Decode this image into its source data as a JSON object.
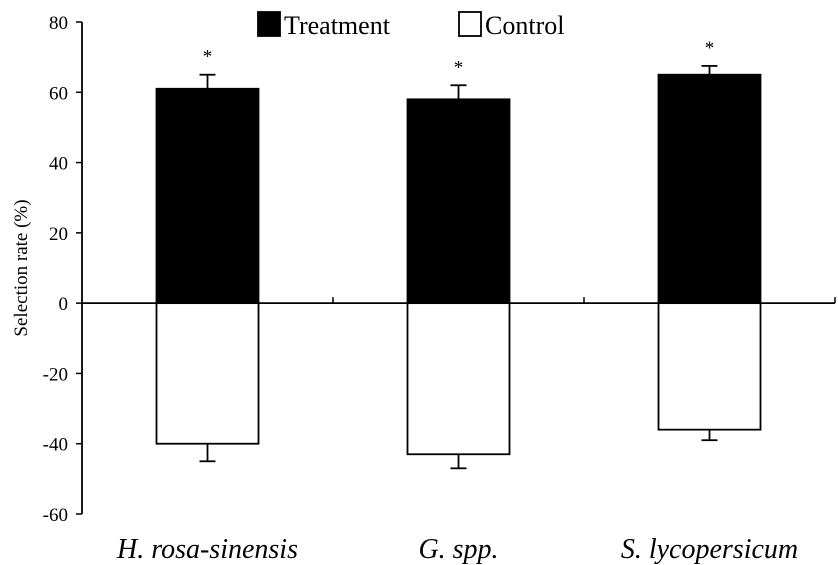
{
  "chart_data": {
    "type": "bar",
    "categories": [
      "H. rosa-sinensis",
      "G. spp.",
      "S. lycopersicum"
    ],
    "series": [
      {
        "name": "Treatment",
        "values": [
          61,
          58,
          65
        ],
        "errors": [
          4,
          4,
          2.5
        ],
        "color": "#000000",
        "annotations": [
          "*",
          "*",
          "*"
        ]
      },
      {
        "name": "Control",
        "values": [
          -40,
          -43,
          -36
        ],
        "errors": [
          5,
          4,
          3
        ],
        "color": "#ffffff"
      }
    ],
    "ylabel": "Selection rate (%)",
    "xlabel": "",
    "title": "",
    "ylim": [
      -60,
      80
    ],
    "yticks": [
      -60,
      -40,
      -20,
      0,
      20,
      40,
      60,
      80
    ],
    "legend_position": "top-center",
    "grid": false,
    "stacked": false
  }
}
